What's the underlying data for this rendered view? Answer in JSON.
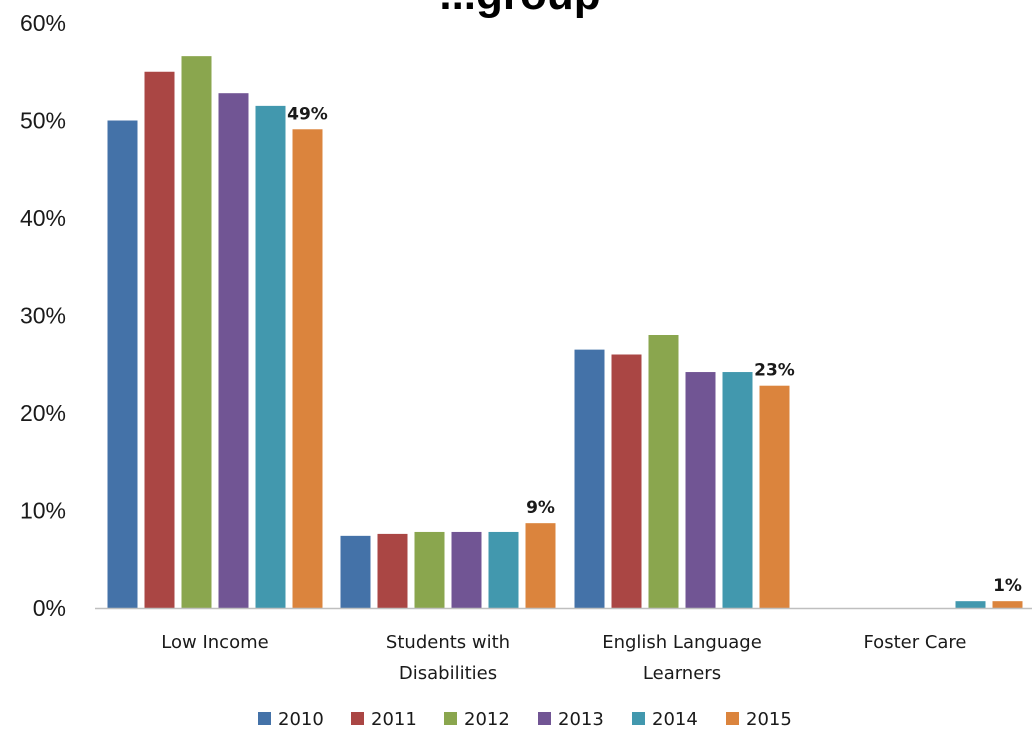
{
  "chart_data": {
    "type": "bar",
    "title_fragment": "...group",
    "categories": [
      [
        "Low Income"
      ],
      [
        "Students with",
        "Disabilities"
      ],
      [
        "English Language",
        "Learners"
      ],
      [
        "Foster Care"
      ]
    ],
    "series": [
      {
        "name": "2010",
        "color": "#4472a8",
        "values": [
          50,
          7.4,
          26.5,
          0
        ]
      },
      {
        "name": "2011",
        "color": "#aa4644",
        "values": [
          55,
          7.6,
          26,
          0
        ]
      },
      {
        "name": "2012",
        "color": "#8aa64e",
        "values": [
          56.6,
          7.8,
          28,
          0
        ]
      },
      {
        "name": "2013",
        "color": "#715594",
        "values": [
          52.8,
          7.8,
          24.2,
          0
        ]
      },
      {
        "name": "2014",
        "color": "#4298ae",
        "values": [
          51.5,
          7.8,
          24.2,
          0.7
        ]
      },
      {
        "name": "2015",
        "color": "#db843d",
        "values": [
          49.1,
          8.7,
          22.8,
          0.7
        ]
      }
    ],
    "data_labels": [
      {
        "category_index": 0,
        "series_index": 5,
        "text": "49%"
      },
      {
        "category_index": 1,
        "series_index": 5,
        "text": "9%"
      },
      {
        "category_index": 2,
        "series_index": 5,
        "text": "23%"
      },
      {
        "category_index": 3,
        "series_index": 5,
        "text": "1%"
      }
    ],
    "y_ticks": [
      "0%",
      "10%",
      "20%",
      "30%",
      "40%",
      "50%",
      "60%"
    ],
    "ylim": [
      0,
      60
    ],
    "grid": false,
    "legend_position": "bottom"
  }
}
